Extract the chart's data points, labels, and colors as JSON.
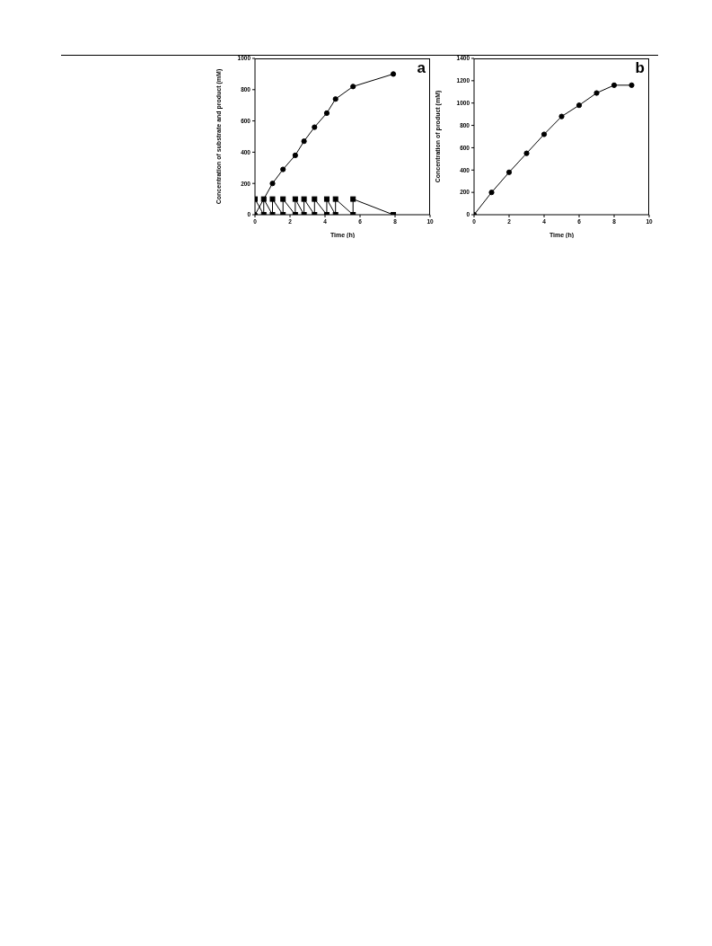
{
  "chart_data": [
    {
      "type": "line",
      "xlabel": "Time (h)",
      "ylabel": "Concentration of substrate and product (mM)",
      "annotations": [
        "a"
      ],
      "xlim": [
        0,
        10
      ],
      "xticks": [
        0,
        2,
        4,
        6,
        8,
        10
      ],
      "ylim": [
        0,
        1000
      ],
      "yticks": [
        0,
        200,
        400,
        600,
        800,
        1000
      ],
      "grid": false,
      "legend": false,
      "series": [
        {
          "color": "#000000",
          "marker": "circle",
          "x": [
            0,
            1,
            1.6,
            2.3,
            2.8,
            3.4,
            4.1,
            4.6,
            5.6,
            7.9
          ],
          "values": [
            0,
            200,
            290,
            380,
            470,
            560,
            650,
            740,
            820,
            900
          ]
        },
        {
          "color": "#000000",
          "marker": "square",
          "x": [
            0,
            0.5,
            0.5,
            1,
            1,
            1.6,
            1.6,
            2.3,
            2.3,
            2.8,
            2.8,
            3.4,
            3.4,
            4.1,
            4.1,
            4.6,
            4.6,
            5.6,
            5.6,
            7.9
          ],
          "values": [
            100,
            0,
            100,
            0,
            100,
            0,
            100,
            0,
            100,
            0,
            100,
            0,
            100,
            0,
            100,
            0,
            100,
            0,
            100,
            0
          ]
        }
      ]
    },
    {
      "type": "line",
      "xlabel": "Time (h)",
      "ylabel": "Concentration of product (mM)",
      "annotations": [
        "b"
      ],
      "xlim": [
        0,
        10
      ],
      "xticks": [
        0,
        2,
        4,
        6,
        8,
        10
      ],
      "ylim": [
        0,
        1400
      ],
      "yticks": [
        0,
        200,
        400,
        600,
        800,
        1000,
        1200,
        1400
      ],
      "grid": false,
      "legend": false,
      "series": [
        {
          "color": "#000000",
          "marker": "circle",
          "x": [
            0,
            1,
            2,
            3,
            4,
            5,
            6,
            7,
            8,
            9
          ],
          "values": [
            0,
            200,
            380,
            550,
            720,
            880,
            980,
            1090,
            1160,
            1160
          ]
        }
      ]
    }
  ]
}
